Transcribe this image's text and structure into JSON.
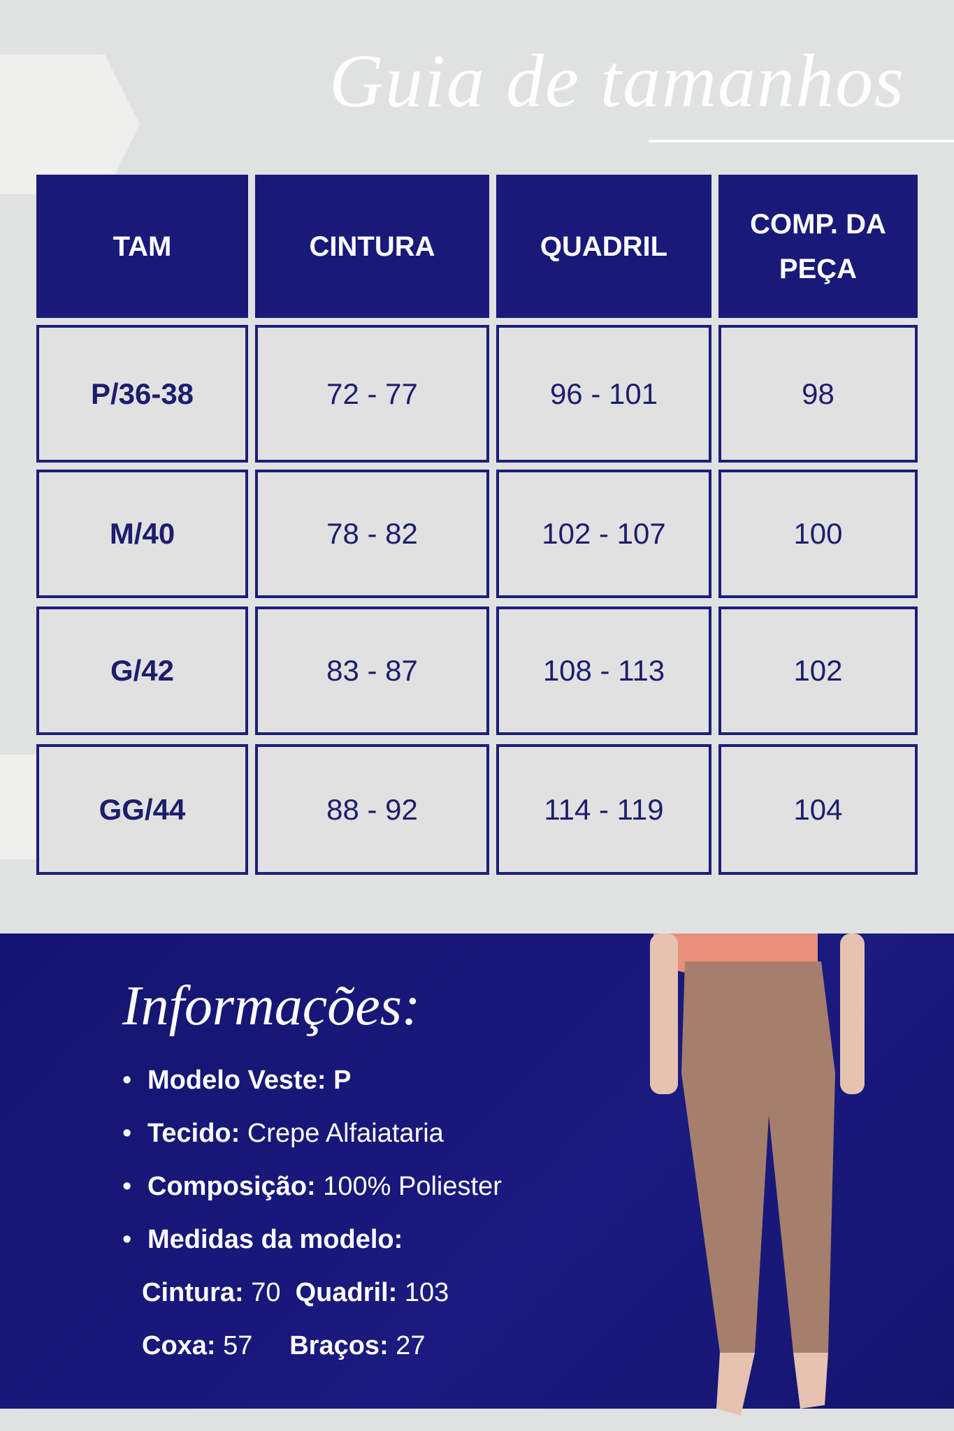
{
  "title": "Guia de tamanhos",
  "table": {
    "headers": [
      "TAM",
      "CINTURA",
      "QUADRIL",
      "COMP. DA PEÇA"
    ],
    "rows": [
      [
        "P/36-38",
        "72 - 77",
        "96 - 101",
        "98"
      ],
      [
        "M/40",
        "78 - 82",
        "102 - 107",
        "100"
      ],
      [
        "G/42",
        "83 - 87",
        "108 - 113",
        "102"
      ],
      [
        "GG/44",
        "88 - 92",
        "114 - 119",
        "104"
      ]
    ]
  },
  "info": {
    "title": "Informações:",
    "items": [
      {
        "label": "Modelo Veste:",
        "value": "P"
      },
      {
        "label": "Tecido:",
        "value": "Crepe Alfaiataria"
      },
      {
        "label": "Composição:",
        "value": "100% Poliester"
      },
      {
        "label": "Medidas da modelo:",
        "value": ""
      }
    ],
    "measures": [
      {
        "label": "Cintura:",
        "value": "70"
      },
      {
        "label": "Quadril:",
        "value": "103"
      },
      {
        "label": "Coxa:",
        "value": "57"
      },
      {
        "label": "Braços:",
        "value": "27"
      }
    ]
  },
  "colors": {
    "navy": "#19197a",
    "background": "#e0e1e1",
    "pants": "#a57e6c",
    "top": "#e8907a"
  }
}
